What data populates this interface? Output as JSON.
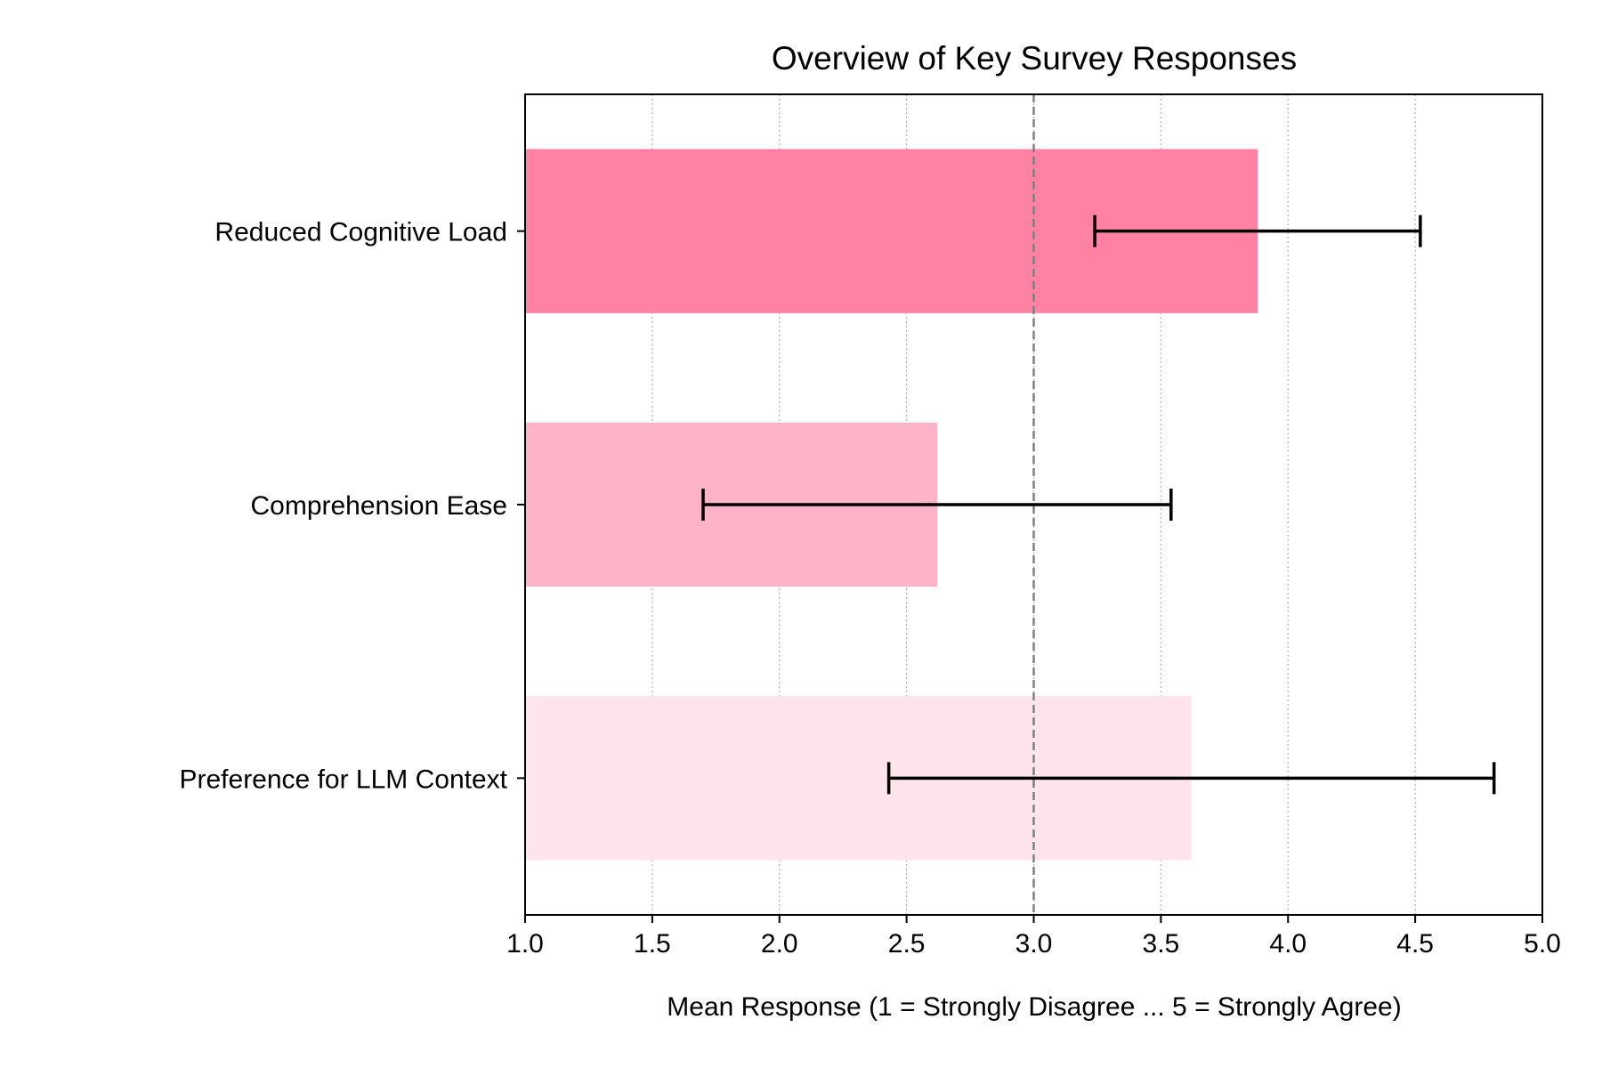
{
  "chart_data": {
    "type": "bar",
    "orientation": "horizontal",
    "title": "Overview of Key Survey Responses",
    "xlabel": "Mean Response (1 = Strongly Disagree ... 5 = Strongly Agree)",
    "ylabel": "",
    "xlim": [
      1.0,
      5.0
    ],
    "xticks": [
      "1.0",
      "1.5",
      "2.0",
      "2.5",
      "3.0",
      "3.5",
      "4.0",
      "4.5",
      "5.0"
    ],
    "grid": "vertical dotted",
    "reference_line": 3.0,
    "categories": [
      "Reduced Cognitive Load",
      "Comprehension Ease",
      "Preference for LLM Context"
    ],
    "values": [
      3.88,
      2.62,
      3.62
    ],
    "error_low": [
      3.24,
      1.7,
      2.43
    ],
    "error_high": [
      4.52,
      3.54,
      4.81
    ],
    "colors": [
      "#ff82a3",
      "#ffb3c8",
      "#ffe4ec"
    ],
    "error_bar_color": "#000000",
    "reference_line_color": "#808080"
  }
}
